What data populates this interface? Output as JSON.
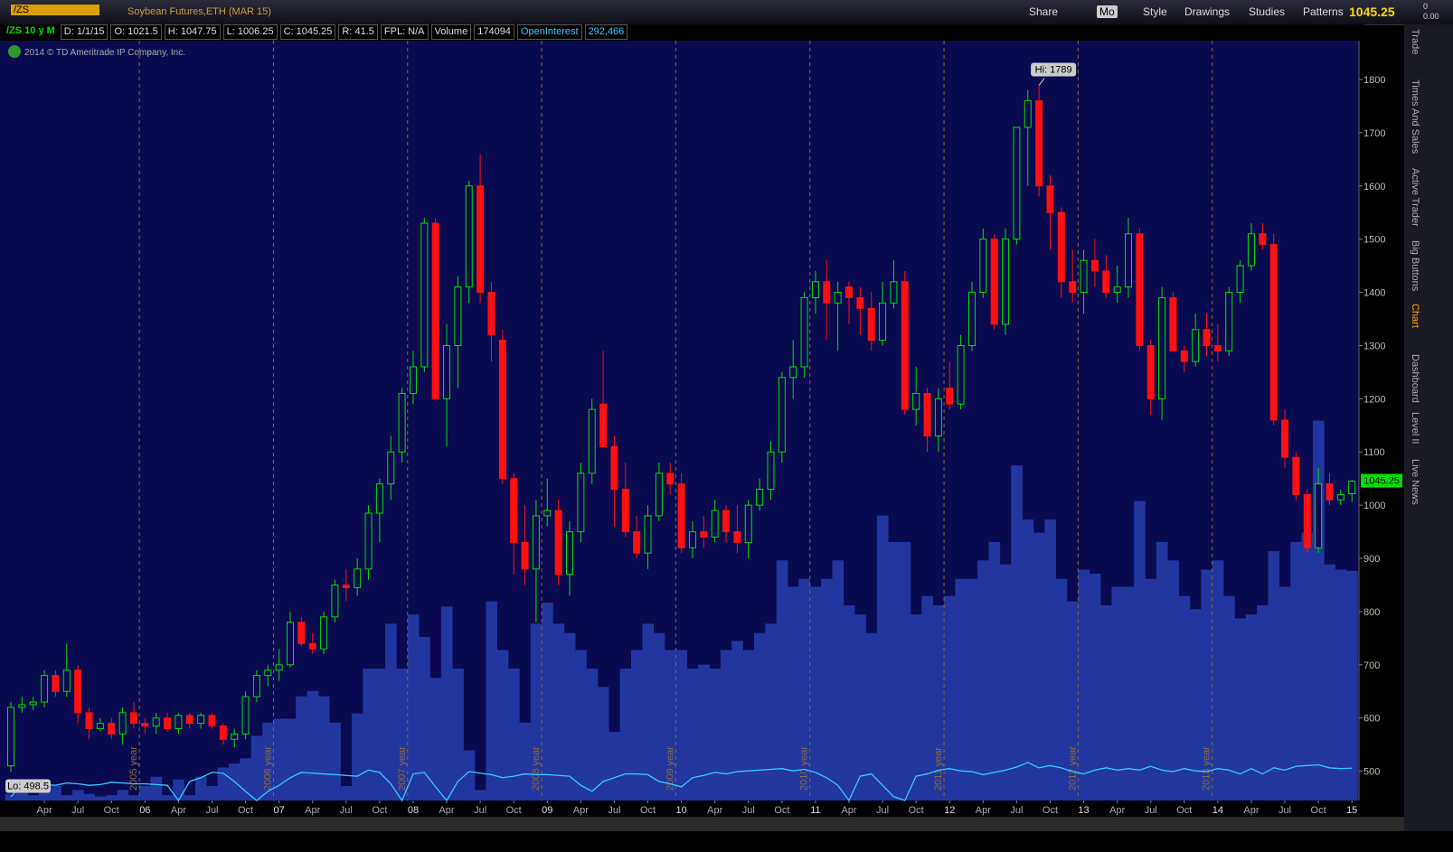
{
  "toolbar": {
    "symbol": "/ZS",
    "description": "Soybean Futures,ETH (MAR 15)",
    "share": "Share",
    "period": "Mo",
    "style": "Style",
    "drawings": "Drawings",
    "studies": "Studies",
    "patterns": "Patterns",
    "last": "1045.25",
    "change": "0",
    "change_pct": "0.00"
  },
  "info_bar": {
    "chart": "/ZS 10 y M",
    "date": "D: 1/1/15",
    "open": "O: 1021.5",
    "high": "H: 1047.75",
    "low": "L: 1006.25",
    "close": "C: 1045.25",
    "range": "R: 41.5",
    "fpl": "FPL: N/A",
    "volume_label": "Volume",
    "volume": "174094",
    "oi_label": "OpenInterest",
    "oi": "292,466"
  },
  "watermark": "2014 © TD Ameritrade IP Company, Inc.",
  "side_tabs": [
    "Trade",
    "Times And Sales",
    "Active Trader",
    "Big Buttons",
    "Chart",
    "Dashboard",
    "Level II",
    "Live News"
  ],
  "chart_data": {
    "type": "candlestick",
    "hi_label": "Hi: 1789",
    "lo_label": "Lo: 498.5",
    "last_label": "1045.25",
    "year_labels": [
      "2005 year",
      "2006 year",
      "2007 year",
      "2008 year",
      "2009 year",
      "2010 year",
      "2011 year",
      "2012 year",
      "2013 year"
    ],
    "categories": [
      null,
      null,
      null,
      "Apr",
      null,
      null,
      "Jul",
      null,
      null,
      "Oct",
      null,
      null,
      "06",
      null,
      null,
      "Apr",
      null,
      null,
      "Jul",
      null,
      null,
      "Oct",
      null,
      null,
      "07",
      null,
      null,
      "Apr",
      null,
      null,
      "Jul",
      null,
      null,
      "Oct",
      null,
      null,
      "08",
      null,
      null,
      "Apr",
      null,
      null,
      "Jul",
      null,
      null,
      "Oct",
      null,
      null,
      "09",
      null,
      null,
      "Apr",
      null,
      null,
      "Jul",
      null,
      null,
      "Oct",
      null,
      null,
      "10",
      null,
      null,
      "Apr",
      null,
      null,
      "Jul",
      null,
      null,
      "Oct",
      null,
      null,
      "11",
      null,
      null,
      "Apr",
      null,
      null,
      "Jul",
      null,
      null,
      "Oct",
      null,
      null,
      "12",
      null,
      null,
      "Apr",
      null,
      null,
      "Jul",
      null,
      null,
      "Oct",
      null,
      null,
      "13",
      null,
      null,
      "Apr",
      null,
      null,
      "Jul",
      null,
      null,
      "Oct",
      null,
      null,
      "14",
      null,
      null,
      "Apr",
      null,
      null,
      "Jul",
      null,
      null,
      "Oct",
      null,
      null,
      "15"
    ],
    "open": [
      510,
      620,
      625,
      630,
      680,
      650,
      690,
      610,
      580,
      590,
      570,
      610,
      590,
      585,
      600,
      580,
      605,
      590,
      605,
      585,
      560,
      570,
      640,
      680,
      690,
      700,
      780,
      740,
      730,
      790,
      850,
      845,
      880,
      985,
      1040,
      1100,
      1210,
      1260,
      1530,
      1200,
      1300,
      1410,
      1600,
      1400,
      1310,
      1050,
      930,
      880,
      980,
      990,
      870,
      950,
      1060,
      1190,
      1110,
      1030,
      950,
      910,
      980,
      1060,
      1040,
      920,
      950,
      940,
      990,
      950,
      930,
      1000,
      1030,
      1100,
      1240,
      1260,
      1390,
      1420,
      1380,
      1410,
      1390,
      1370,
      1310,
      1380,
      1420,
      1180,
      1210,
      1130,
      1220,
      1190,
      1300,
      1400,
      1500,
      1340,
      1500,
      1710,
      1760,
      1600,
      1550,
      1420,
      1400,
      1460,
      1440,
      1400,
      1410,
      1510,
      1300,
      1200,
      1390,
      1290,
      1270,
      1330,
      1300,
      1290,
      1400,
      1450,
      1510,
      1490,
      1160,
      1090,
      1020,
      920,
      1040,
      1010,
      1021.5
    ],
    "high": [
      630,
      640,
      640,
      690,
      690,
      740,
      700,
      620,
      600,
      600,
      620,
      630,
      600,
      610,
      610,
      610,
      610,
      610,
      610,
      590,
      580,
      650,
      690,
      700,
      730,
      800,
      790,
      760,
      800,
      860,
      880,
      900,
      1000,
      1050,
      1130,
      1220,
      1290,
      1540,
      1540,
      1340,
      1430,
      1610,
      1660,
      1420,
      1330,
      1060,
      1000,
      1010,
      1050,
      1010,
      970,
      1080,
      1200,
      1290,
      1130,
      1080,
      980,
      1000,
      1080,
      1080,
      1060,
      970,
      980,
      1010,
      1000,
      1000,
      1010,
      1050,
      1120,
      1250,
      1310,
      1400,
      1440,
      1460,
      1420,
      1420,
      1410,
      1400,
      1420,
      1460,
      1440,
      1260,
      1220,
      1220,
      1270,
      1320,
      1420,
      1520,
      1510,
      1520,
      1710,
      1780,
      1789,
      1620,
      1560,
      1480,
      1480,
      1500,
      1470,
      1450,
      1540,
      1520,
      1310,
      1410,
      1400,
      1300,
      1360,
      1360,
      1340,
      1410,
      1460,
      1530,
      1530,
      1510,
      1180,
      1100,
      1030,
      1070,
      1060,
      1030,
      1047.75
    ],
    "low": [
      498.5,
      610,
      615,
      620,
      640,
      640,
      590,
      560,
      575,
      560,
      550,
      580,
      570,
      570,
      575,
      570,
      580,
      580,
      580,
      550,
      545,
      560,
      630,
      660,
      670,
      695,
      735,
      720,
      720,
      780,
      820,
      830,
      860,
      930,
      1010,
      1080,
      1190,
      1250,
      1200,
      1110,
      1220,
      1380,
      1380,
      1270,
      1040,
      870,
      850,
      780,
      960,
      850,
      830,
      930,
      1040,
      1110,
      960,
      940,
      900,
      880,
      970,
      1020,
      910,
      900,
      920,
      930,
      930,
      910,
      900,
      990,
      1010,
      1080,
      1200,
      1240,
      1360,
      1310,
      1290,
      1340,
      1320,
      1290,
      1300,
      1370,
      1170,
      1150,
      1100,
      1100,
      1180,
      1180,
      1290,
      1390,
      1330,
      1320,
      1490,
      1600,
      1580,
      1480,
      1390,
      1380,
      1360,
      1410,
      1390,
      1380,
      1390,
      1290,
      1170,
      1160,
      1290,
      1250,
      1260,
      1280,
      1270,
      1280,
      1380,
      1440,
      1480,
      1150,
      1070,
      1010,
      910,
      910,
      1000,
      1000,
      1006.25
    ],
    "close": [
      620,
      625,
      630,
      680,
      650,
      690,
      610,
      580,
      590,
      570,
      610,
      590,
      585,
      600,
      580,
      605,
      590,
      605,
      585,
      560,
      570,
      640,
      680,
      690,
      700,
      780,
      740,
      730,
      790,
      850,
      845,
      880,
      985,
      1040,
      1100,
      1210,
      1260,
      1530,
      1200,
      1300,
      1410,
      1600,
      1400,
      1320,
      1050,
      930,
      880,
      980,
      990,
      870,
      950,
      1060,
      1180,
      1110,
      1030,
      950,
      910,
      980,
      1060,
      1040,
      920,
      950,
      940,
      990,
      950,
      930,
      1000,
      1030,
      1100,
      1240,
      1260,
      1390,
      1420,
      1380,
      1400,
      1390,
      1370,
      1310,
      1380,
      1420,
      1180,
      1210,
      1130,
      1200,
      1190,
      1300,
      1400,
      1500,
      1340,
      1500,
      1710,
      1760,
      1600,
      1550,
      1420,
      1400,
      1460,
      1440,
      1400,
      1410,
      1510,
      1300,
      1200,
      1390,
      1290,
      1270,
      1330,
      1300,
      1290,
      1400,
      1450,
      1510,
      1490,
      1160,
      1090,
      1020,
      920,
      1040,
      1010,
      1020,
      1045.25
    ],
    "up_color": "#00e000",
    "down_color": "#ff1010",
    "volume": [
      5000,
      7000,
      4000,
      8000,
      11000,
      4000,
      8000,
      5000,
      3000,
      4000,
      8000,
      4000,
      11000,
      18000,
      4000,
      16000,
      4000,
      18000,
      11000,
      25000,
      28000,
      32000,
      49000,
      59000,
      62000,
      62000,
      79000,
      83000,
      79000,
      59000,
      11000,
      66000,
      100000,
      100000,
      134000,
      100000,
      141000,
      124000,
      93000,
      147000,
      100000,
      38000,
      8000,
      151000,
      114000,
      100000,
      59000,
      134000,
      150000,
      134000,
      127000,
      114000,
      100000,
      86000,
      52000,
      100000,
      114000,
      134000,
      127000,
      114000,
      114000,
      100000,
      103000,
      100000,
      114000,
      121000,
      114000,
      127000,
      134000,
      182000,
      162000,
      168000,
      162000,
      168000,
      182000,
      148000,
      141000,
      127000,
      216000,
      196000,
      196000,
      141000,
      155000,
      148000,
      155000,
      168000,
      168000,
      182000,
      196000,
      179000,
      254000,
      213000,
      203000,
      213000,
      168000,
      151000,
      175000,
      172000,
      148000,
      162000,
      162000,
      227000,
      168000,
      196000,
      182000,
      155000,
      145000,
      175000,
      182000,
      155000,
      138000,
      141000,
      148000,
      189000,
      162000,
      196000,
      203000,
      288000,
      179000,
      175000,
      174094
    ],
    "volume_color": "#2236a0",
    "vlim": [
      0,
      576000
    ],
    "open_interest": [
      255000,
      270000,
      272000,
      271000,
      270000,
      273000,
      272000,
      270000,
      271000,
      274000,
      273000,
      272000,
      272000,
      271000,
      270000,
      250000,
      275000,
      280000,
      287000,
      286000,
      275000,
      262000,
      250000,
      262000,
      270000,
      280000,
      287000,
      286000,
      285000,
      284000,
      283000,
      282000,
      290000,
      287000,
      272000,
      250000,
      285000,
      287000,
      268000,
      250000,
      275000,
      288000,
      286000,
      284000,
      280000,
      282000,
      285000,
      284000,
      284000,
      283000,
      282000,
      270000,
      262000,
      275000,
      280000,
      285000,
      285000,
      284000,
      275000,
      272000,
      268000,
      280000,
      283000,
      287000,
      285000,
      288000,
      289000,
      290000,
      291000,
      292000,
      289000,
      291000,
      287000,
      280000,
      270000,
      250000,
      282000,
      285000,
      270000,
      255000,
      250000,
      282000,
      285000,
      290000,
      292000,
      289000,
      288000,
      284000,
      287000,
      290000,
      294000,
      300000,
      293000,
      296000,
      293000,
      288000,
      285000,
      290000,
      293000,
      290000,
      292000,
      290000,
      295000,
      290000,
      288000,
      292000,
      289000,
      288000,
      292000,
      290000,
      285000,
      292000,
      285000,
      293000,
      290000,
      295000,
      296000,
      297000,
      293000,
      292000,
      292466
    ],
    "oi_color": "#33ccff",
    "oilim": [
      250000,
      1250000
    ],
    "ylim": [
      445,
      1873
    ],
    "yticks": [
      500,
      600,
      700,
      800,
      900,
      1000,
      1100,
      1200,
      1300,
      1400,
      1500,
      1600,
      1700,
      1800
    ]
  }
}
